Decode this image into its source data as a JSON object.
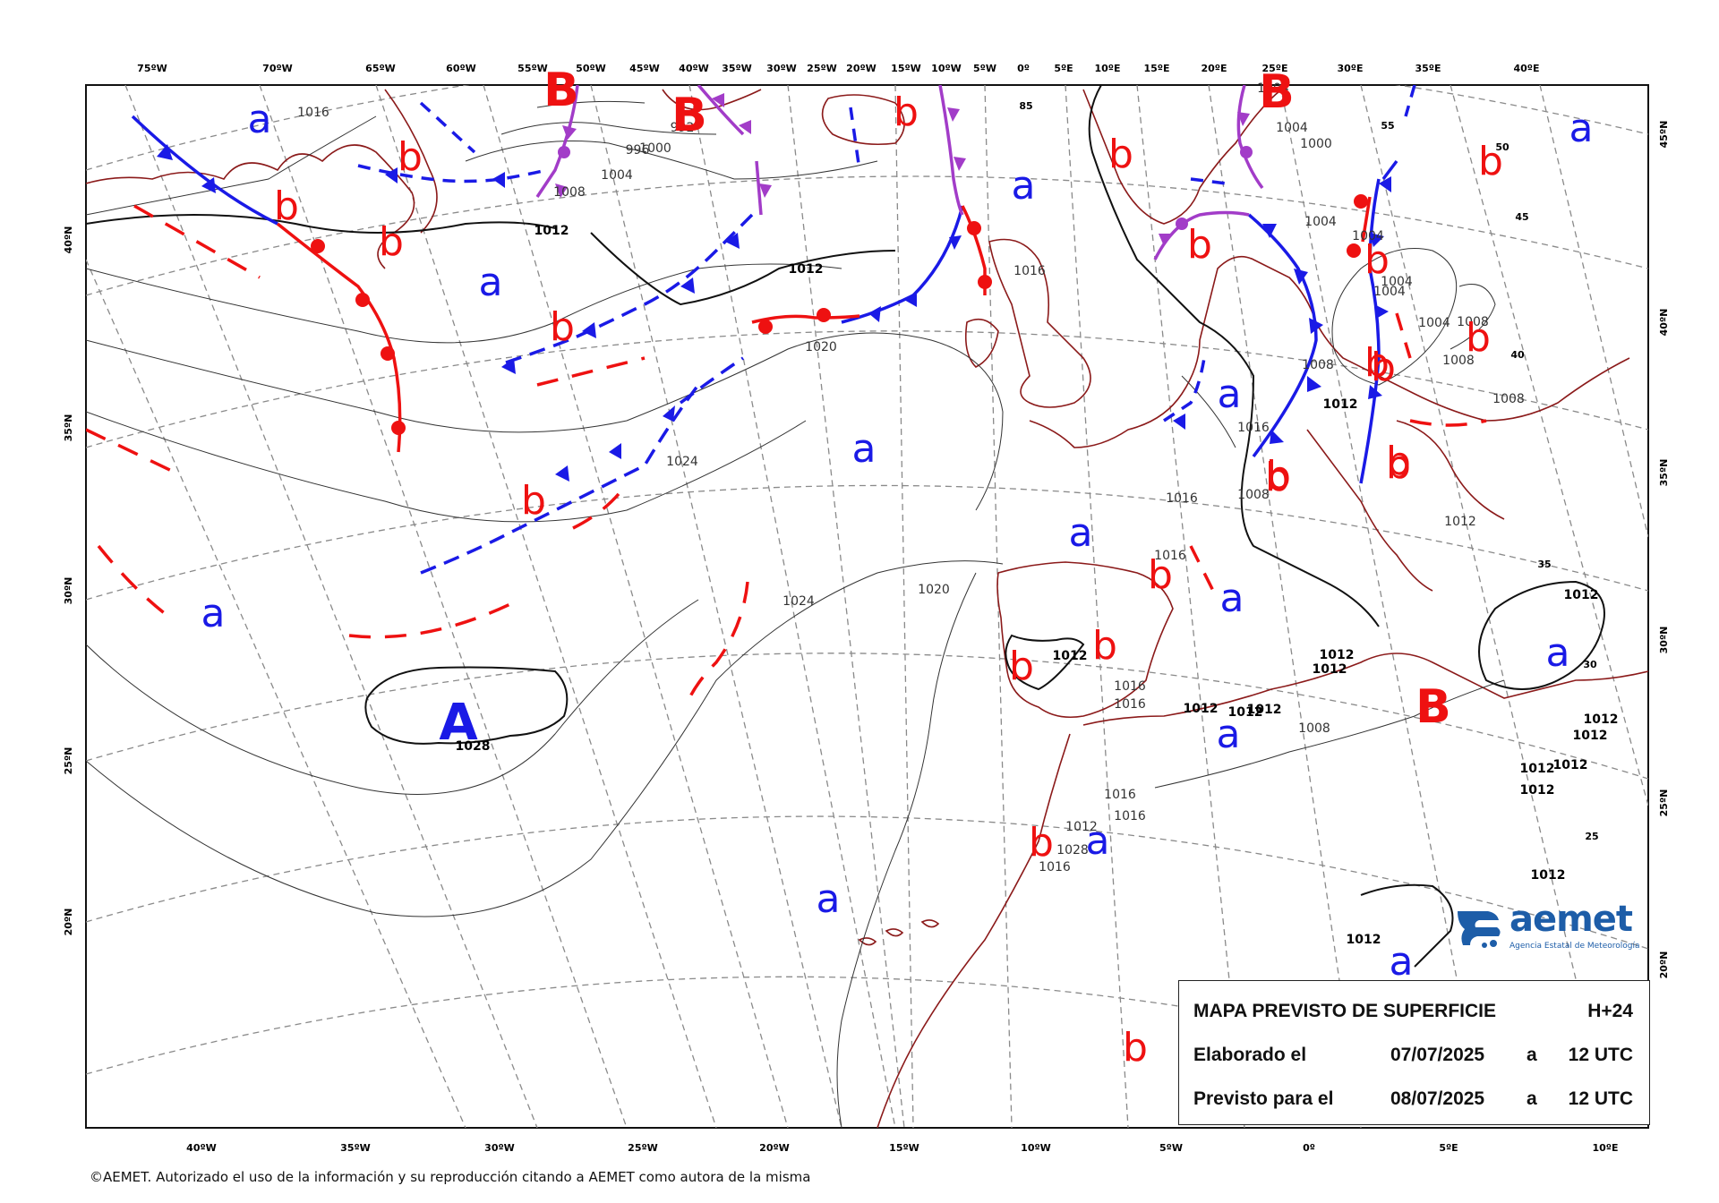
{
  "map": {
    "top_ticks": [
      "75ºW",
      "70ºW",
      "65ºW",
      "60ºW",
      "55ºW",
      "50ºW",
      "45ºW",
      "40ºW",
      "35ºW",
      "30ºW",
      "25ºW",
      "20ºW",
      "15ºW",
      "10ºW",
      "5ºW",
      "0º",
      "5ºE",
      "10ºE",
      "15ºE",
      "20ºE",
      "25ºE",
      "30ºE",
      "35ºE",
      "40ºE"
    ],
    "bottom_ticks": [
      "40ºW",
      "35ºW",
      "30ºW",
      "25ºW",
      "20ºW",
      "15ºW",
      "10ºW",
      "5ºW",
      "0º",
      "5ºE",
      "10ºE"
    ],
    "left_ticks": [
      "40ºN",
      "35ºN",
      "30ºN",
      "25ºN",
      "20ºN"
    ],
    "right_ticks": [
      "45ºN",
      "40ºN",
      "35ºN",
      "30ºN",
      "25ºN",
      "20ºN"
    ],
    "grid_inner_labels": [
      "55",
      "50",
      "45",
      "40",
      "35",
      "30",
      "25",
      "85"
    ],
    "isobar_labels": [
      "1016",
      "1008",
      "1012",
      "1004",
      "1000",
      "1000",
      "996",
      "992",
      "1004",
      "1012",
      "1016",
      "1020",
      "1024",
      "1024",
      "1020",
      "1028",
      "1016",
      "1016",
      "1008",
      "1004",
      "1004",
      "1004",
      "1004",
      "1004",
      "1004",
      "1008",
      "1008",
      "1008",
      "1008",
      "1012",
      "1012",
      "1012",
      "1012",
      "1012",
      "1012",
      "1012",
      "1012",
      "1012",
      "1012",
      "1012",
      "1016",
      "1016",
      "1016",
      "1016",
      "1016",
      "1012",
      "1008",
      "1028",
      "1016",
      "1012",
      "1012",
      "1012",
      "1012",
      "1012"
    ],
    "pressure_centers": {
      "highs_small": [
        "a",
        "a",
        "a",
        "a",
        "a",
        "a",
        "a",
        "a",
        "a",
        "a",
        "a",
        "a",
        "a",
        "a"
      ],
      "lows_small": [
        "b",
        "b",
        "b",
        "b",
        "b",
        "b",
        "b",
        "b",
        "b",
        "b",
        "b",
        "b",
        "b",
        "b",
        "b",
        "b",
        "b",
        "b",
        "b",
        "b",
        "b",
        "b"
      ],
      "highs_major": [
        "A"
      ],
      "lows_major": [
        "B",
        "B",
        "B",
        "B"
      ]
    },
    "colors": {
      "cold_front": "#1a1ae6",
      "warm_front": "#ee1111",
      "occluded_front": "#a23cc8",
      "coastline": "#8b1a1a",
      "isobar": "#333333",
      "grid": "#888888"
    }
  },
  "legend": {
    "title": "MAPA PREVISTO DE SUPERFICIE",
    "horizon": "H+24",
    "row1_label": "Elaborado el",
    "row1_date": "07/07/2025",
    "row1_a": "a",
    "row1_time": "12 UTC",
    "row2_label": "Previsto para el",
    "row2_date": "08/07/2025",
    "row2_a": "a",
    "row2_time": "12 UTC"
  },
  "logo": {
    "name": "aemet",
    "subtitle": "Agencia Estatal de Meteorología"
  },
  "footer": {
    "copyright": "©AEMET. Autorizado el uso de la información y su reproducción citando a AEMET como autora de la misma"
  }
}
